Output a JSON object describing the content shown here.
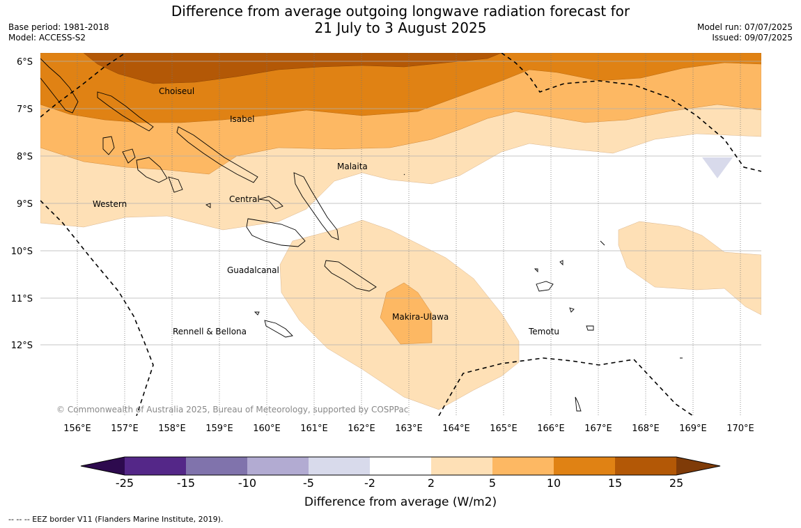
{
  "header": {
    "title_line1": "Difference from average outgoing longwave radiation forecast for",
    "title_line2": "21 July to 3 August 2025",
    "base_period": "Base period: 1981-2018",
    "model": "Model: ACCESS-S2",
    "model_run": "Model run: 07/07/2025",
    "issued": "Issued: 09/07/2025"
  },
  "map": {
    "lat_labels": [
      "6°S",
      "7°S",
      "8°S",
      "9°S",
      "10°S",
      "11°S",
      "12°S"
    ],
    "lon_labels": [
      "156°E",
      "157°E",
      "158°E",
      "159°E",
      "160°E",
      "161°E",
      "162°E",
      "163°E",
      "164°E",
      "165°E",
      "166°E",
      "167°E",
      "168°E",
      "169°E",
      "170°E"
    ],
    "regions": [
      "Choiseul",
      "Isabel",
      "Malaita",
      "Western",
      "Central",
      "Guadalcanal",
      "Makira-Ulawa",
      "Rennell & Bellona",
      "Temotu"
    ],
    "copyright": "© Commonwealth of Australia 2025, Bureau of Meteorology, supported by COSPPac"
  },
  "colorbar": {
    "title": "Difference from average (W/m2)",
    "tick_labels": [
      "-25",
      "-15",
      "-10",
      "-5",
      "-2",
      "2",
      "5",
      "10",
      "15",
      "25"
    ],
    "colors": [
      "#2d0a4e",
      "#542788",
      "#8073ac",
      "#b2abd2",
      "#d8daeb",
      "#ffffff",
      "#fee0b6",
      "#fdb863",
      "#e08214",
      "#b35806",
      "#7f3b08"
    ]
  },
  "footnote": "--  --  -- EEZ border V11 (Flanders Marine Institute, 2019)."
}
